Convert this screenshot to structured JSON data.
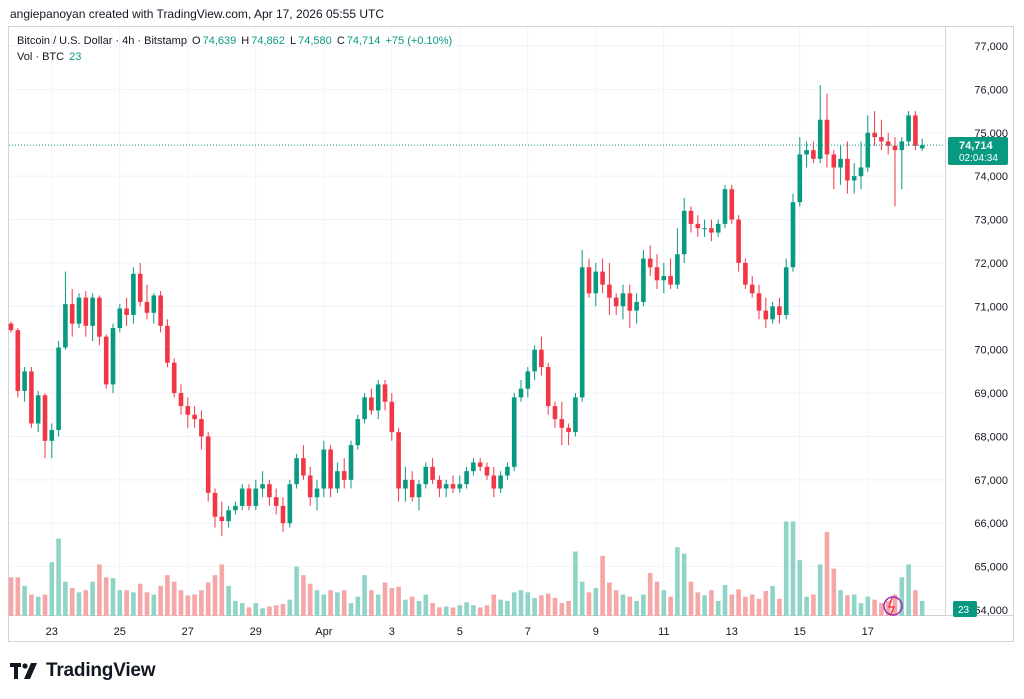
{
  "header": {
    "credit": "angiepanoyan created with TradingView.com, Apr 17, 2026 05:55 UTC"
  },
  "legend": {
    "symbol": "Bitcoin / U.S. Dollar · 4h · Bitstamp",
    "o_label": "O",
    "o_value": "74,639",
    "h_label": "H",
    "h_value": "74,862",
    "l_label": "L",
    "l_value": "74,580",
    "c_label": "C",
    "c_value": "74,714",
    "change": "+75 (+0.10%)",
    "vol_label": "Vol · BTC",
    "vol_value": "23"
  },
  "price_label": {
    "price": "74,714",
    "countdown": "02:04:34"
  },
  "volume_label": "23",
  "brand": {
    "name": "TradingView"
  },
  "colors": {
    "up": "#089981",
    "down": "#f23645",
    "up_vol": "#8fd4c6",
    "down_vol": "#f5a6a6"
  },
  "chart_data": {
    "type": "candlestick",
    "title": "Bitcoin / U.S. Dollar · 4h · Bitstamp",
    "ylim": [
      64000,
      77000
    ],
    "y_ticks": [
      77000,
      76000,
      75000,
      74000,
      73000,
      72000,
      71000,
      70000,
      69000,
      68000,
      67000,
      66000,
      65000,
      64000
    ],
    "y_tick_labels": [
      "77,000",
      "76,000",
      "75,000",
      "74,000",
      "73,000",
      "72,000",
      "71,000",
      "70,000",
      "69,000",
      "68,000",
      "67,000",
      "66,000",
      "65,000",
      "64,000"
    ],
    "x_ticks": [
      {
        "label": "23",
        "index": 6
      },
      {
        "label": "25",
        "index": 16
      },
      {
        "label": "27",
        "index": 26
      },
      {
        "label": "29",
        "index": 36
      },
      {
        "label": "Apr",
        "index": 46
      },
      {
        "label": "3",
        "index": 56
      },
      {
        "label": "5",
        "index": 66
      },
      {
        "label": "7",
        "index": 76
      },
      {
        "label": "9",
        "index": 86
      },
      {
        "label": "11",
        "index": 96
      },
      {
        "label": "13",
        "index": 106
      },
      {
        "label": "15",
        "index": 116
      },
      {
        "label": "17",
        "index": 126
      }
    ],
    "last_price": 74714,
    "candles": [
      [
        70600,
        70650,
        70400,
        70450,
        0.9
      ],
      [
        70450,
        70500,
        68900,
        69050,
        0.9
      ],
      [
        69050,
        69600,
        68800,
        69500,
        0.7
      ],
      [
        69500,
        69600,
        68200,
        68300,
        0.5
      ],
      [
        68300,
        69050,
        68100,
        68950,
        0.45
      ],
      [
        68950,
        69000,
        67500,
        67900,
        0.5
      ],
      [
        67900,
        68300,
        67500,
        68150,
        1.25
      ],
      [
        68150,
        70200,
        68000,
        70050,
        1.8
      ],
      [
        70050,
        71800,
        70000,
        71050,
        0.8
      ],
      [
        71050,
        71400,
        70300,
        70600,
        0.65
      ],
      [
        70600,
        71300,
        70500,
        71200,
        0.55
      ],
      [
        71200,
        71350,
        70300,
        70550,
        0.6
      ],
      [
        70550,
        71300,
        70200,
        71200,
        0.8
      ],
      [
        71200,
        71250,
        70100,
        70300,
        1.2
      ],
      [
        70300,
        70350,
        69100,
        69200,
        0.9
      ],
      [
        69200,
        70600,
        69000,
        70500,
        0.88
      ],
      [
        70500,
        71050,
        70400,
        70950,
        0.6
      ],
      [
        70950,
        71200,
        70550,
        70800,
        0.6
      ],
      [
        70800,
        71900,
        70600,
        71750,
        0.55
      ],
      [
        71750,
        72000,
        71000,
        71100,
        0.75
      ],
      [
        71100,
        71500,
        70700,
        70850,
        0.55
      ],
      [
        70850,
        71300,
        70600,
        71250,
        0.5
      ],
      [
        71250,
        71350,
        70400,
        70550,
        0.7
      ],
      [
        70550,
        70700,
        69600,
        69700,
        0.95
      ],
      [
        69700,
        69800,
        68900,
        69000,
        0.8
      ],
      [
        69000,
        69200,
        68500,
        68700,
        0.6
      ],
      [
        68700,
        68900,
        68200,
        68500,
        0.48
      ],
      [
        68500,
        68700,
        68200,
        68400,
        0.5
      ],
      [
        68400,
        68600,
        67700,
        68000,
        0.6
      ],
      [
        68000,
        68100,
        66500,
        66700,
        0.78
      ],
      [
        66700,
        66800,
        65900,
        66150,
        0.95
      ],
      [
        66150,
        66500,
        65700,
        66050,
        1.2
      ],
      [
        66050,
        66400,
        65900,
        66300,
        0.7
      ],
      [
        66300,
        66500,
        66200,
        66400,
        0.35
      ],
      [
        66400,
        66900,
        66300,
        66800,
        0.3
      ],
      [
        66800,
        66900,
        66300,
        66400,
        0.2
      ],
      [
        66400,
        67000,
        66300,
        66800,
        0.3
      ],
      [
        66800,
        67200,
        66600,
        66900,
        0.18
      ],
      [
        66900,
        67000,
        66400,
        66600,
        0.22
      ],
      [
        66600,
        66800,
        66200,
        66400,
        0.25
      ],
      [
        66400,
        66600,
        65800,
        66000,
        0.28
      ],
      [
        66000,
        67000,
        65900,
        66900,
        0.38
      ],
      [
        66900,
        67600,
        66800,
        67500,
        1.15
      ],
      [
        67500,
        67800,
        67000,
        67100,
        0.95
      ],
      [
        67100,
        67300,
        66400,
        66600,
        0.75
      ],
      [
        66600,
        67000,
        66300,
        66800,
        0.6
      ],
      [
        66800,
        67900,
        66600,
        67700,
        0.5
      ],
      [
        67700,
        67800,
        66600,
        66800,
        0.6
      ],
      [
        66800,
        67400,
        66700,
        67200,
        0.55
      ],
      [
        67200,
        67500,
        66800,
        67000,
        0.6
      ],
      [
        67000,
        67900,
        66800,
        67800,
        0.3
      ],
      [
        67800,
        68500,
        67700,
        68400,
        0.45
      ],
      [
        68400,
        69000,
        68300,
        68900,
        0.95
      ],
      [
        68900,
        69100,
        68500,
        68600,
        0.6
      ],
      [
        68600,
        69300,
        68400,
        69200,
        0.5
      ],
      [
        69200,
        69300,
        68600,
        68800,
        0.78
      ],
      [
        68800,
        69000,
        67900,
        68100,
        0.65
      ],
      [
        68100,
        68200,
        66500,
        66800,
        0.68
      ],
      [
        66800,
        67300,
        66500,
        67000,
        0.38
      ],
      [
        67000,
        67200,
        66500,
        66600,
        0.45
      ],
      [
        66600,
        67000,
        66300,
        66900,
        0.35
      ],
      [
        66900,
        67400,
        66800,
        67300,
        0.5
      ],
      [
        67300,
        67500,
        66900,
        67000,
        0.3
      ],
      [
        67000,
        67100,
        66600,
        66800,
        0.2
      ],
      [
        66800,
        67000,
        66600,
        66900,
        0.22
      ],
      [
        66900,
        67100,
        66700,
        66800,
        0.2
      ],
      [
        66800,
        67100,
        66700,
        66900,
        0.25
      ],
      [
        66900,
        67300,
        66800,
        67200,
        0.32
      ],
      [
        67200,
        67500,
        67100,
        67400,
        0.25
      ],
      [
        67400,
        67500,
        67200,
        67300,
        0.2
      ],
      [
        67300,
        67400,
        67000,
        67100,
        0.25
      ],
      [
        67100,
        67300,
        66600,
        66800,
        0.5
      ],
      [
        66800,
        67200,
        66700,
        67100,
        0.38
      ],
      [
        67100,
        67400,
        67000,
        67300,
        0.35
      ],
      [
        67300,
        69000,
        67200,
        68900,
        0.55
      ],
      [
        68900,
        69300,
        68800,
        69100,
        0.6
      ],
      [
        69100,
        69600,
        68900,
        69500,
        0.55
      ],
      [
        69500,
        70100,
        69300,
        70000,
        0.42
      ],
      [
        70000,
        70300,
        69400,
        69600,
        0.48
      ],
      [
        69600,
        69700,
        68500,
        68700,
        0.52
      ],
      [
        68700,
        68800,
        68200,
        68400,
        0.42
      ],
      [
        68400,
        68800,
        67800,
        68200,
        0.3
      ],
      [
        68200,
        68300,
        67800,
        68100,
        0.35
      ],
      [
        68100,
        69000,
        68000,
        68900,
        1.5
      ],
      [
        68900,
        72300,
        68800,
        71900,
        0.8
      ],
      [
        71900,
        72100,
        71200,
        71300,
        0.55
      ],
      [
        71300,
        72000,
        71000,
        71800,
        0.65
      ],
      [
        71800,
        72100,
        71300,
        71500,
        1.4
      ],
      [
        71500,
        72000,
        70800,
        71200,
        0.78
      ],
      [
        71200,
        71300,
        70800,
        71000,
        0.6
      ],
      [
        71000,
        71500,
        70700,
        71300,
        0.5
      ],
      [
        71300,
        71500,
        70500,
        70900,
        0.45
      ],
      [
        70900,
        71300,
        70600,
        71100,
        0.35
      ],
      [
        71100,
        72300,
        71000,
        72100,
        0.5
      ],
      [
        72100,
        72400,
        71700,
        71900,
        1.0
      ],
      [
        71900,
        72200,
        71400,
        71600,
        0.8
      ],
      [
        71600,
        72000,
        71300,
        71700,
        0.6
      ],
      [
        71700,
        72100,
        71400,
        71500,
        0.45
      ],
      [
        71500,
        72800,
        71400,
        72200,
        1.6
      ],
      [
        72200,
        73500,
        72000,
        73200,
        1.45
      ],
      [
        73200,
        73300,
        72700,
        72900,
        0.8
      ],
      [
        72900,
        73100,
        72600,
        72800,
        0.55
      ],
      [
        72800,
        73000,
        72600,
        72800,
        0.48
      ],
      [
        72800,
        73000,
        72500,
        72700,
        0.6
      ],
      [
        72700,
        73000,
        72600,
        72900,
        0.35
      ],
      [
        72900,
        73800,
        72800,
        73700,
        0.72
      ],
      [
        73700,
        73800,
        72900,
        73000,
        0.5
      ],
      [
        73000,
        73100,
        71800,
        72000,
        0.62
      ],
      [
        72000,
        72100,
        71400,
        71500,
        0.45
      ],
      [
        71500,
        71700,
        71200,
        71300,
        0.5
      ],
      [
        71300,
        71500,
        70700,
        70900,
        0.4
      ],
      [
        70900,
        71200,
        70500,
        70700,
        0.58
      ],
      [
        70700,
        71100,
        70600,
        71000,
        0.7
      ],
      [
        71000,
        71200,
        70600,
        70800,
        0.4
      ],
      [
        70800,
        72100,
        70700,
        71900,
        2.2
      ],
      [
        71900,
        73600,
        71800,
        73400,
        2.2
      ],
      [
        73400,
        74900,
        73300,
        74500,
        1.3
      ],
      [
        74500,
        74800,
        74200,
        74600,
        0.45
      ],
      [
        74600,
        74800,
        74300,
        74400,
        0.5
      ],
      [
        74400,
        76100,
        74300,
        75300,
        1.2
      ],
      [
        75300,
        75900,
        74200,
        74500,
        1.95
      ],
      [
        74500,
        74600,
        73700,
        74200,
        1.1
      ],
      [
        74200,
        74700,
        73800,
        74400,
        0.6
      ],
      [
        74400,
        74800,
        73600,
        73900,
        0.48
      ],
      [
        73900,
        74300,
        73600,
        74000,
        0.5
      ],
      [
        74000,
        74800,
        73700,
        74200,
        0.3
      ],
      [
        74200,
        75400,
        74100,
        75000,
        0.45
      ],
      [
        75000,
        75500,
        74700,
        74900,
        0.38
      ],
      [
        74900,
        75300,
        74600,
        74800,
        0.3
      ],
      [
        74800,
        75000,
        74500,
        74700,
        0.35
      ],
      [
        74700,
        74900,
        73300,
        74600,
        0.5
      ],
      [
        74600,
        74900,
        73700,
        74800,
        0.9
      ],
      [
        74800,
        75500,
        74700,
        75400,
        1.2
      ],
      [
        75400,
        75500,
        74600,
        74700,
        0.6
      ],
      [
        74639,
        74862,
        74580,
        74714,
        0.35
      ]
    ]
  }
}
